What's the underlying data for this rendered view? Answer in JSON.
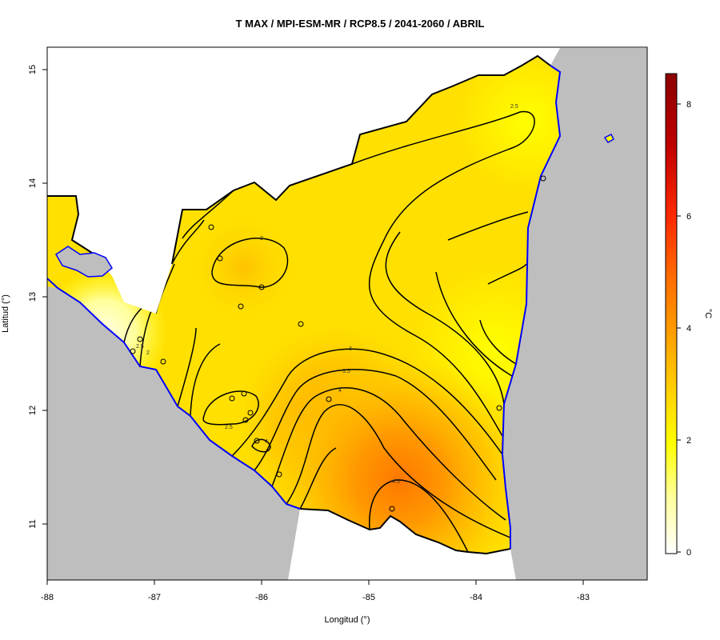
{
  "title": "T MAX / MPI-ESM-MR / RCP8.5 / 2041-2060 / ABRIL",
  "axes": {
    "x_label": "Longitud (°)",
    "y_label": "Latitud (°)",
    "x_ticks": [
      "-88",
      "-87",
      "-86",
      "-85",
      "-84",
      "-83"
    ],
    "y_ticks": [
      "11",
      "12",
      "13",
      "14",
      "15"
    ]
  },
  "colorbar": {
    "unit": "°C",
    "ticks": [
      "0",
      "2",
      "4",
      "6",
      "8"
    ],
    "range": [
      0,
      8.6
    ],
    "colors": [
      "#ffffff",
      "#ffff7a",
      "#ffff00",
      "#ffd21a",
      "#ffa500",
      "#ff5a00",
      "#ff1a00",
      "#b00000",
      "#8b0000"
    ]
  },
  "contour_labels": [
    "3",
    "2.5",
    "3",
    "3.5",
    "4",
    "4.5",
    "2.5",
    "4",
    "2.5",
    "2"
  ],
  "colors": {
    "land": "#ffff1a",
    "ocean": "#bebebe",
    "coast": "#0000ff",
    "border": "#000000"
  }
}
